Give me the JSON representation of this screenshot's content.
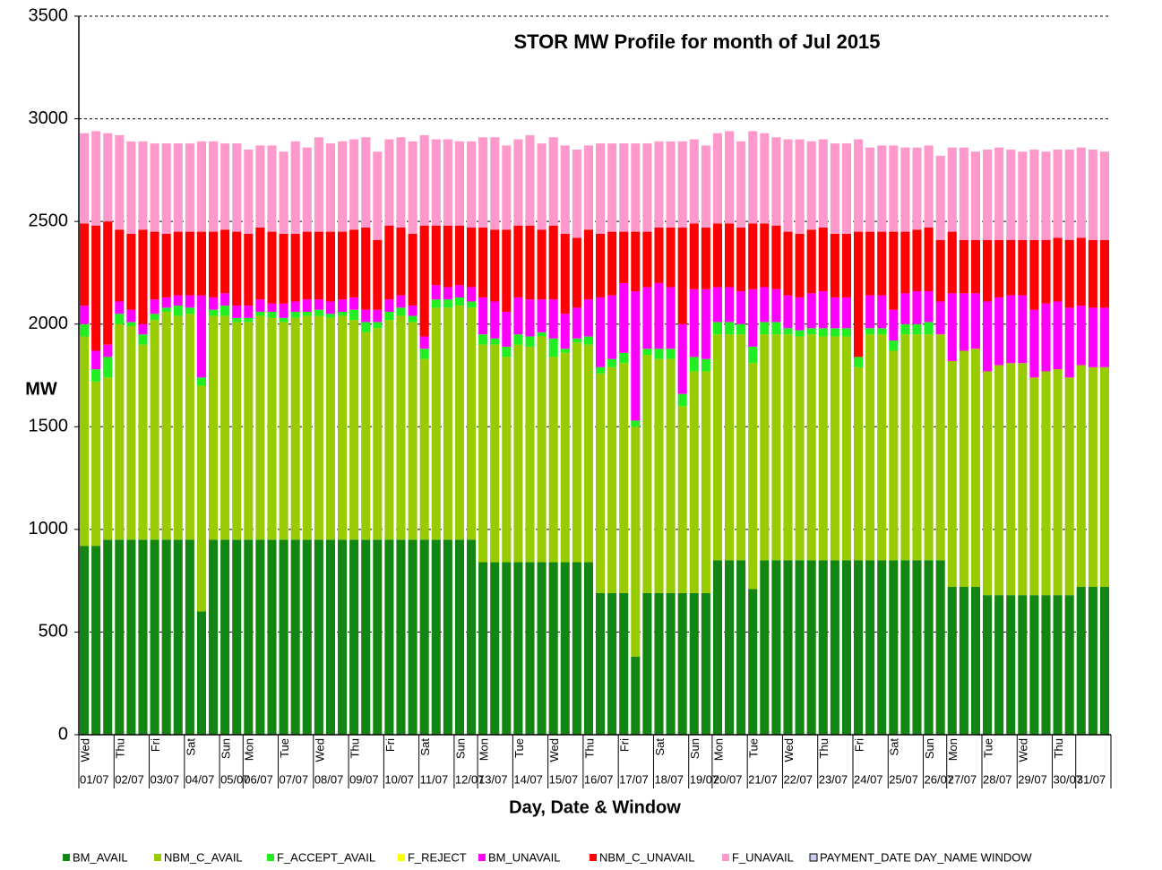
{
  "chart_data": {
    "type": "stacked_bar",
    "title": "STOR MW Profile for month  of Jul 2015",
    "x_label": "Day, Date & Window",
    "y_label": "MW",
    "ylim": [
      0,
      3500
    ],
    "yticks": [
      0,
      500,
      1000,
      1500,
      2000,
      2500,
      3000,
      3500
    ],
    "grid": true,
    "legend": "bottom",
    "categories": [
      "Wed",
      null,
      null,
      "Thu",
      null,
      null,
      "Fri",
      null,
      null,
      "Sat",
      null,
      null,
      "Sun",
      null,
      "Mon",
      null,
      null,
      "Tue",
      null,
      null,
      "Wed",
      null,
      null,
      "Thu",
      null,
      null,
      "Fri",
      null,
      null,
      "Sat",
      null,
      null,
      "Sun",
      null,
      "Mon",
      null,
      null,
      "Tue",
      null,
      null,
      "Wed",
      null,
      null,
      "Thu",
      null,
      null,
      "Fri",
      null,
      null,
      "Sat",
      null,
      null,
      "Sun",
      null,
      "Mon",
      null,
      null,
      "Tue",
      null,
      null,
      "Wed",
      null,
      null,
      "Thu",
      null,
      null,
      "Fri",
      null,
      null,
      "Sat",
      null,
      null,
      "Sun",
      null,
      "Mon",
      null,
      null,
      "Tue",
      null,
      null,
      "Wed",
      null,
      null,
      "Thu",
      null,
      null,
      null,
      null
    ],
    "dates": [
      "01/07",
      null,
      null,
      "02/07",
      null,
      null,
      "03/07",
      null,
      null,
      "04/07",
      null,
      null,
      "05/07",
      null,
      "06/07",
      null,
      null,
      "07/07",
      null,
      null,
      "08/07",
      null,
      null,
      "09/07",
      null,
      null,
      "10/07",
      null,
      null,
      "11/07",
      null,
      null,
      "12/07",
      null,
      "13/07",
      null,
      null,
      "14/07",
      null,
      null,
      "15/07",
      null,
      null,
      "16/07",
      null,
      null,
      "17/07",
      null,
      null,
      "18/07",
      null,
      null,
      "19/07",
      null,
      "20/07",
      null,
      null,
      "21/07",
      null,
      null,
      "22/07",
      null,
      null,
      "23/07",
      null,
      null,
      "24/07",
      null,
      null,
      "25/07",
      null,
      null,
      "26/07",
      null,
      "27/07",
      null,
      null,
      "28/07",
      null,
      null,
      "29/07",
      null,
      null,
      "30/07",
      null,
      "31/07",
      null,
      null
    ],
    "series": [
      {
        "name": "BM_AVAIL",
        "color": "#128512",
        "values": [
          920,
          920,
          950,
          950,
          950,
          950,
          950,
          950,
          950,
          950,
          600,
          950,
          950,
          950,
          950,
          950,
          950,
          950,
          950,
          950,
          950,
          950,
          950,
          950,
          950,
          950,
          950,
          950,
          950,
          950,
          950,
          950,
          950,
          950,
          840,
          840,
          840,
          840,
          840,
          840,
          840,
          840,
          840,
          840,
          690,
          690,
          690,
          380,
          690,
          690,
          690,
          690,
          690,
          690,
          850,
          850,
          850,
          710,
          850,
          850,
          850,
          850,
          850,
          850,
          850,
          850,
          850,
          850,
          850,
          850,
          850,
          850,
          850,
          850,
          720,
          720,
          720,
          680,
          680,
          680,
          680,
          680,
          680,
          680,
          680,
          720,
          720,
          720
        ]
      },
      {
        "name": "NBM_C_AVAIL",
        "color": "#99cc00",
        "values": [
          1020,
          800,
          790,
          1050,
          1040,
          950,
          1070,
          1110,
          1090,
          1100,
          1100,
          1090,
          1090,
          1060,
          1060,
          1090,
          1080,
          1060,
          1080,
          1090,
          1090,
          1080,
          1090,
          1070,
          1010,
          1030,
          1070,
          1090,
          1060,
          880,
          1130,
          1130,
          1140,
          1130,
          1060,
          1060,
          1000,
          1060,
          1050,
          1100,
          1000,
          1020,
          1070,
          1060,
          1070,
          1100,
          1120,
          1120,
          1160,
          1140,
          1140,
          910,
          1080,
          1080,
          1100,
          1100,
          1100,
          1100,
          1100,
          1100,
          1100,
          1090,
          1100,
          1090,
          1090,
          1090,
          940,
          1100,
          1100,
          1020,
          1100,
          1100,
          1100,
          1100,
          1100,
          1150,
          1160,
          1090,
          1120,
          1130,
          1130,
          1060,
          1090,
          1100,
          1060,
          1080,
          1070,
          1070
        ]
      },
      {
        "name": "F_ACCEPT_AVAIL",
        "color": "#22ee22",
        "values": [
          60,
          60,
          100,
          50,
          20,
          50,
          30,
          20,
          50,
          30,
          40,
          30,
          50,
          20,
          20,
          20,
          30,
          20,
          30,
          20,
          30,
          20,
          20,
          50,
          50,
          30,
          40,
          40,
          30,
          50,
          40,
          40,
          40,
          30,
          50,
          30,
          50,
          50,
          50,
          20,
          90,
          20,
          20,
          40,
          30,
          40,
          50,
          30,
          30,
          50,
          50,
          60,
          70,
          60,
          60,
          60,
          50,
          80,
          60,
          60,
          30,
          30,
          30,
          40,
          40,
          40,
          50,
          30,
          30,
          50,
          50,
          50,
          60,
          0,
          0,
          0,
          0,
          0,
          0,
          0,
          0,
          0,
          0,
          0,
          0,
          0,
          0,
          0
        ]
      },
      {
        "name": "F_REJECT",
        "color": "#ffff00",
        "values": [
          0,
          0,
          0,
          0,
          0,
          0,
          0,
          0,
          0,
          0,
          0,
          0,
          0,
          0,
          0,
          0,
          0,
          0,
          0,
          0,
          0,
          0,
          0,
          0,
          0,
          0,
          0,
          0,
          0,
          0,
          0,
          0,
          0,
          0,
          0,
          0,
          0,
          0,
          0,
          0,
          0,
          0,
          0,
          0,
          0,
          0,
          0,
          0,
          0,
          0,
          0,
          0,
          0,
          0,
          0,
          0,
          0,
          0,
          0,
          0,
          0,
          0,
          0,
          0,
          0,
          0,
          0,
          0,
          0,
          0,
          0,
          0,
          0,
          0,
          0,
          0,
          0,
          0,
          0,
          0,
          0,
          0,
          0,
          0,
          0,
          0,
          0,
          0
        ]
      },
      {
        "name": "BM_UNAVAIL",
        "color": "#ff00ff",
        "values": [
          90,
          90,
          60,
          60,
          60,
          50,
          70,
          50,
          50,
          60,
          400,
          60,
          60,
          60,
          60,
          60,
          40,
          70,
          50,
          60,
          50,
          60,
          60,
          60,
          60,
          60,
          60,
          60,
          50,
          60,
          70,
          60,
          60,
          70,
          180,
          180,
          170,
          180,
          180,
          160,
          190,
          170,
          150,
          180,
          340,
          310,
          340,
          630,
          300,
          320,
          300,
          340,
          330,
          340,
          170,
          170,
          160,
          280,
          170,
          160,
          160,
          160,
          170,
          180,
          150,
          150,
          0,
          160,
          160,
          150,
          150,
          160,
          150,
          160,
          330,
          280,
          270,
          340,
          330,
          330,
          330,
          330,
          330,
          330,
          340,
          290,
          290,
          290
        ]
      },
      {
        "name": "NBM_C_UNAVAIL",
        "color": "#ff0000",
        "values": [
          400,
          610,
          600,
          350,
          370,
          460,
          330,
          310,
          310,
          310,
          310,
          320,
          310,
          360,
          350,
          350,
          350,
          340,
          330,
          330,
          330,
          340,
          330,
          330,
          400,
          340,
          360,
          330,
          350,
          540,
          290,
          300,
          290,
          290,
          340,
          350,
          400,
          350,
          360,
          340,
          360,
          390,
          340,
          340,
          310,
          310,
          250,
          290,
          270,
          270,
          290,
          470,
          320,
          300,
          310,
          310,
          310,
          320,
          310,
          310,
          310,
          310,
          310,
          310,
          310,
          310,
          610,
          310,
          310,
          380,
          300,
          300,
          310,
          300,
          300,
          260,
          260,
          300,
          280,
          270,
          270,
          340,
          310,
          310,
          330,
          330,
          330,
          330
        ]
      },
      {
        "name": "F_UNAVAIL",
        "color": "#ff99cc",
        "values": [
          440,
          460,
          430,
          460,
          450,
          430,
          430,
          440,
          430,
          430,
          440,
          440,
          420,
          430,
          410,
          400,
          420,
          400,
          450,
          410,
          460,
          430,
          440,
          440,
          440,
          430,
          420,
          440,
          450,
          440,
          420,
          420,
          410,
          420,
          440,
          450,
          410,
          420,
          440,
          420,
          430,
          430,
          430,
          410,
          440,
          430,
          430,
          430,
          430,
          420,
          420,
          420,
          410,
          400,
          440,
          450,
          420,
          450,
          440,
          430,
          450,
          460,
          430,
          430,
          440,
          440,
          450,
          410,
          420,
          420,
          410,
          400,
          400,
          410,
          410,
          450,
          430,
          440,
          450,
          440,
          430,
          440,
          430,
          430,
          440,
          440,
          440,
          430
        ]
      }
    ],
    "legend_extra": {
      "name": "PAYMENT_DATE DAY_NAME WINDOW",
      "color": "#ccccee"
    }
  }
}
